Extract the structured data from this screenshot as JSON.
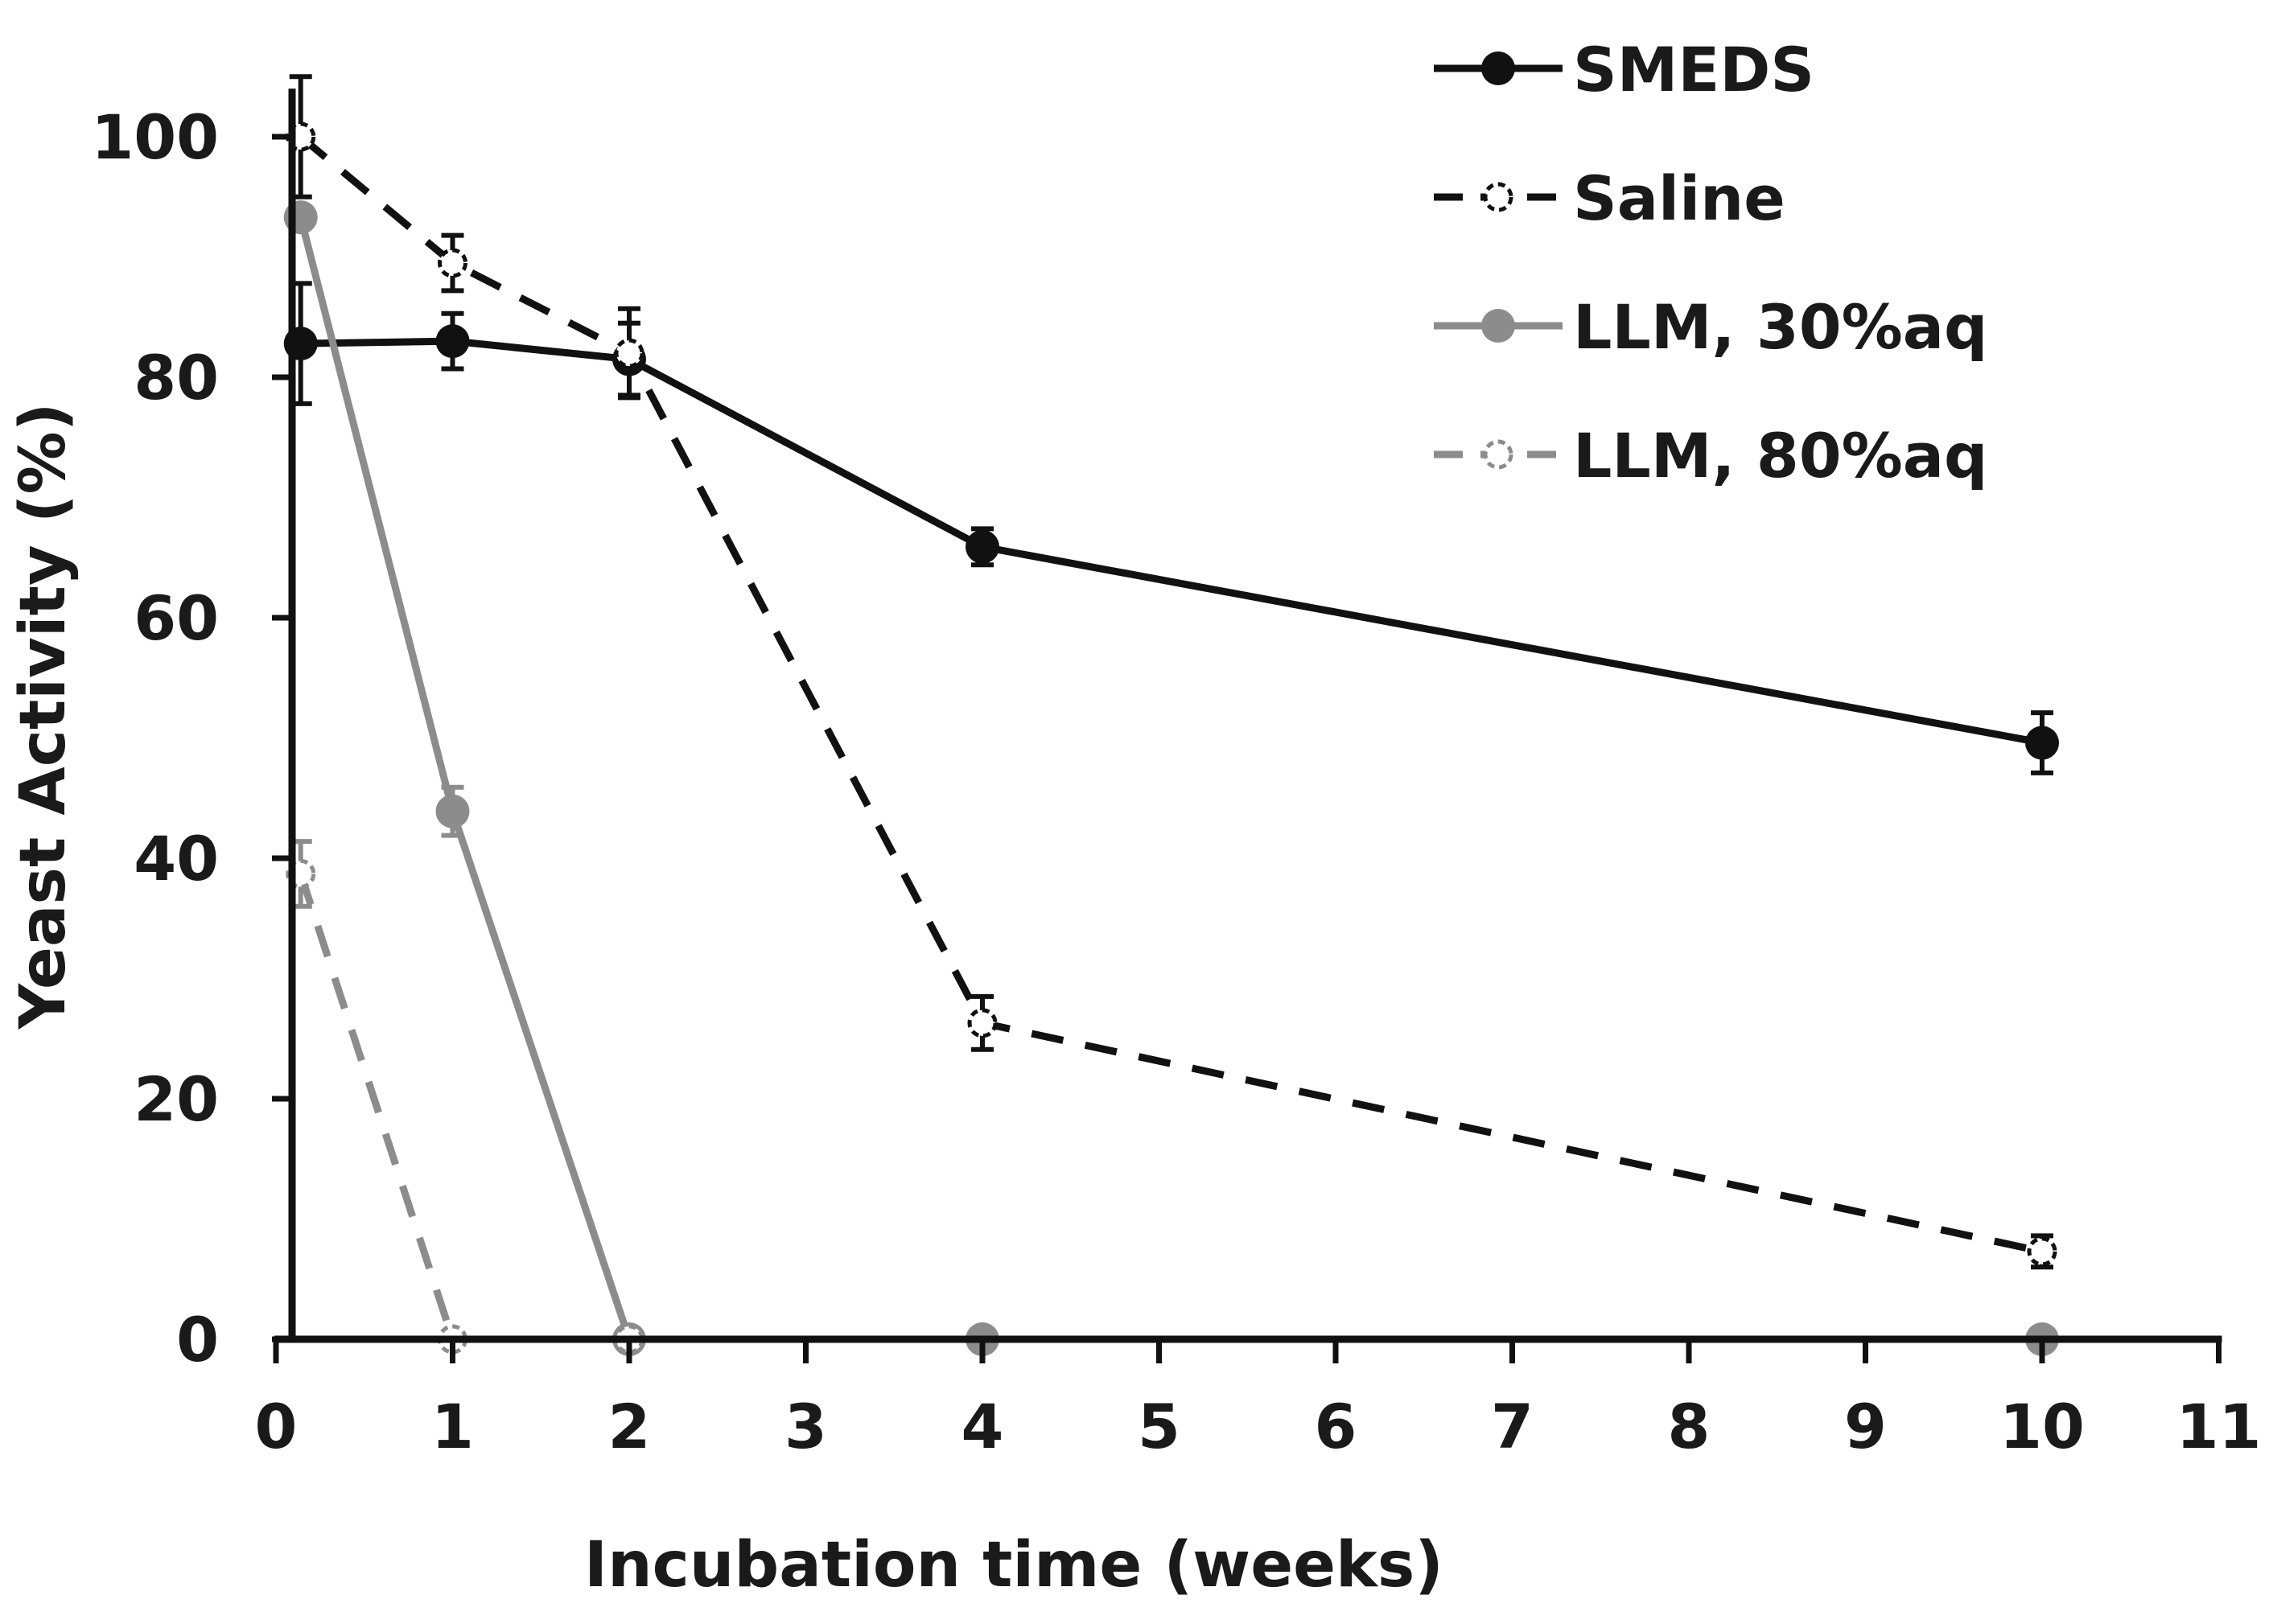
{
  "chart_data": {
    "type": "line",
    "xlabel": "Incubation time (weeks)",
    "ylabel": "Yeast Activity (%)",
    "xlim": [
      0,
      11
    ],
    "ylim": [
      0,
      100
    ],
    "x_ticks": [
      0,
      1,
      2,
      3,
      4,
      5,
      6,
      7,
      8,
      9,
      10,
      11
    ],
    "y_ticks": [
      0,
      20,
      40,
      60,
      80,
      100
    ],
    "grid": false,
    "legend_position": "top-right",
    "series": [
      {
        "name": "SMEDS",
        "x": [
          0.14,
          1,
          2,
          4,
          10
        ],
        "y": [
          82.8,
          83,
          81.5,
          65.9,
          49.6
        ],
        "err": [
          5,
          2.3,
          3,
          1.5,
          2.5
        ],
        "color": "#111111",
        "line_style": "solid",
        "marker": "filled-circle"
      },
      {
        "name": "Saline",
        "x": [
          0.14,
          1,
          2,
          4,
          10
        ],
        "y": [
          100,
          89.5,
          82,
          26.3,
          7.3
        ],
        "err": [
          5,
          2.3,
          3.7,
          2.2,
          1.3
        ],
        "color": "#111111",
        "line_style": "dashed",
        "marker": "open-dashed-circle"
      },
      {
        "name": "LLM, 30%aq",
        "x": [
          0.14,
          1,
          2,
          4,
          10
        ],
        "y": [
          93.3,
          43.9,
          0,
          0,
          0
        ],
        "err": [
          0,
          2,
          0,
          0,
          0
        ],
        "color": "#8c8c8c",
        "line_style": "solid",
        "marker": "filled-circle"
      },
      {
        "name": "LLM, 80%aq",
        "x": [
          0.14,
          1,
          2
        ],
        "y": [
          38.7,
          0,
          0
        ],
        "err": [
          2.7,
          0,
          0
        ],
        "color": "#8c8c8c",
        "line_style": "dashed",
        "marker": "open-dashed-circle"
      }
    ]
  }
}
